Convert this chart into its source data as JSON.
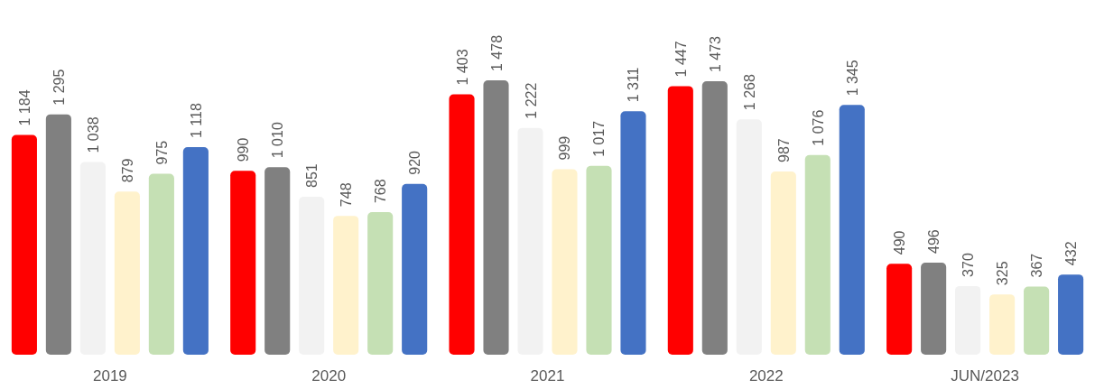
{
  "chart_data": {
    "type": "bar",
    "categories": [
      "2019",
      "2020",
      "2021",
      "2022",
      "JUN/2023"
    ],
    "series": [
      {
        "color": "#ff0000",
        "values": [
          1184,
          990,
          1403,
          1447,
          490
        ],
        "value_labels": [
          "1 184",
          "990",
          "1 403",
          "1 447",
          "490"
        ]
      },
      {
        "color": "#808080",
        "values": [
          1295,
          1010,
          1478,
          1473,
          496
        ],
        "value_labels": [
          "1 295",
          "1 010",
          "1 478",
          "1 473",
          "496"
        ]
      },
      {
        "color": "#f2f2f2",
        "values": [
          1038,
          851,
          1222,
          1268,
          370
        ],
        "value_labels": [
          "1 038",
          "851",
          "1 222",
          "1 268",
          "370"
        ]
      },
      {
        "color": "#fff2cc",
        "values": [
          879,
          748,
          999,
          987,
          325
        ],
        "value_labels": [
          "879",
          "748",
          "999",
          "987",
          "325"
        ]
      },
      {
        "color": "#c5e0b4",
        "values": [
          975,
          768,
          1017,
          1076,
          367
        ],
        "value_labels": [
          "975",
          "768",
          "1 017",
          "1 076",
          "367"
        ]
      },
      {
        "color": "#4472c4",
        "values": [
          1118,
          920,
          1311,
          1345,
          432
        ],
        "value_labels": [
          "1 118",
          "920",
          "1 311",
          "1 345",
          "432"
        ]
      }
    ]
  }
}
